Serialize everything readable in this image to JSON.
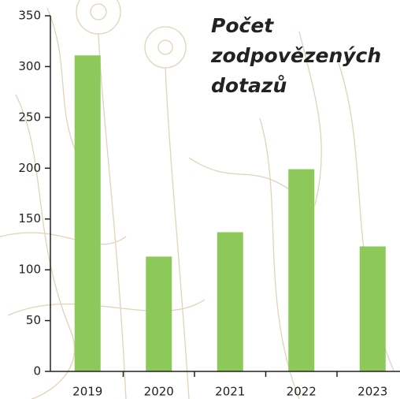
{
  "chart_data": {
    "type": "bar",
    "title": "Počet zodpovězených dotazů",
    "categories": [
      "2019",
      "2020",
      "2021",
      "2022",
      "2023"
    ],
    "values": [
      311,
      113,
      137,
      199,
      123
    ],
    "color": "#8dc85a",
    "ylim": [
      0,
      350
    ],
    "yticks": [
      0,
      50,
      100,
      150,
      200,
      250,
      300,
      350
    ],
    "grid": false
  }
}
